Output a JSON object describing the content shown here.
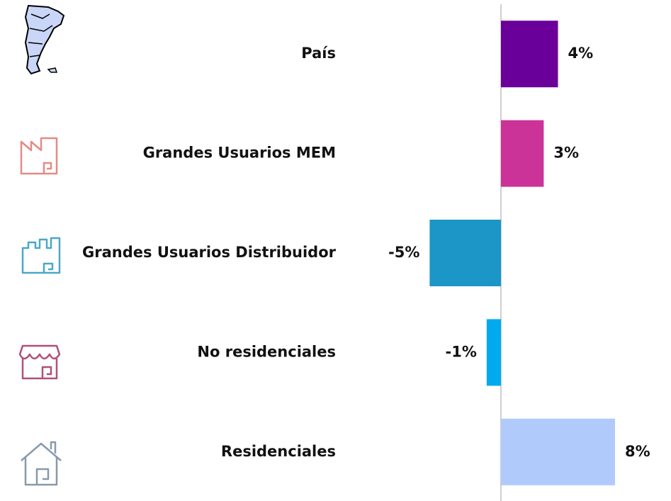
{
  "chart_data": {
    "type": "bar",
    "orientation": "horizontal",
    "categories": [
      "País",
      "Grandes Usuarios MEM",
      "Grandes Usuarios Distribuidor",
      "No residenciales",
      "Residenciales"
    ],
    "values": [
      4,
      3,
      -5,
      -1,
      8
    ],
    "value_labels": [
      "4%",
      "3%",
      "-5%",
      "-1%",
      "8%"
    ],
    "colors": [
      "#6a0099",
      "#cc3399",
      "#1b96c6",
      "#00aaee",
      "#b0cbfb"
    ]
  }
}
